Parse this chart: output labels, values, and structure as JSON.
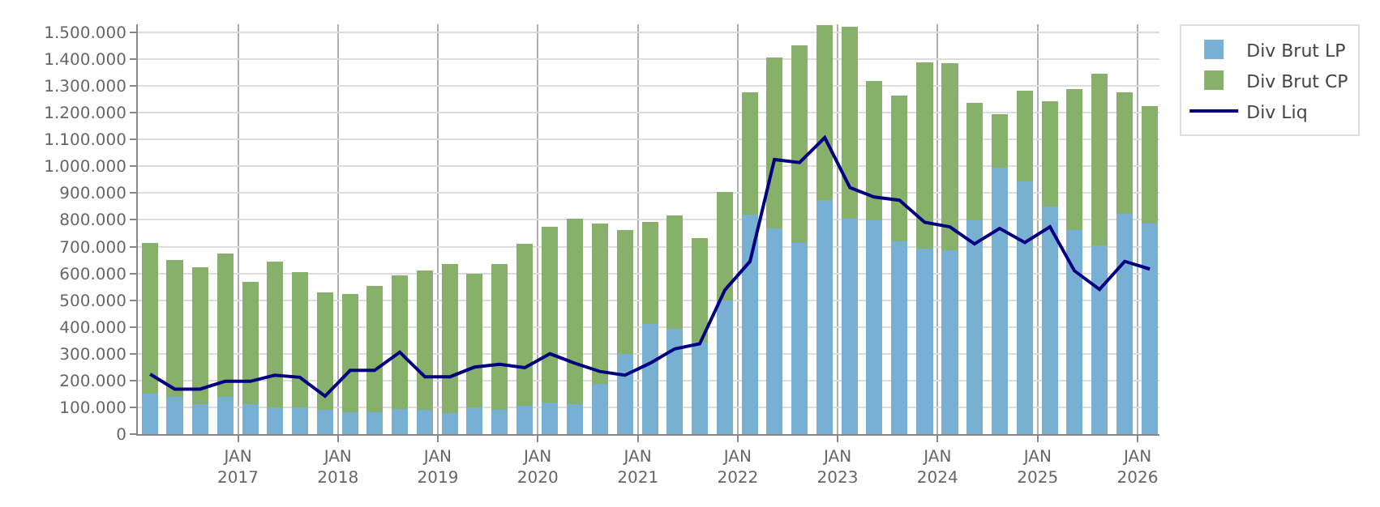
{
  "chart_data": {
    "type": "bar",
    "stacked": true,
    "x": [
      "2016-02-15",
      "2016-05-15",
      "2016-08-15",
      "2016-11-15",
      "2017-02-15",
      "2017-05-15",
      "2017-08-15",
      "2017-11-15",
      "2018-02-15",
      "2018-05-15",
      "2018-08-15",
      "2018-11-15",
      "2019-02-15",
      "2019-05-15",
      "2019-08-15",
      "2019-11-15",
      "2020-02-15",
      "2020-05-15",
      "2020-08-15",
      "2020-11-15",
      "2021-02-15",
      "2021-05-15",
      "2021-08-15",
      "2021-11-15",
      "2022-02-15",
      "2022-05-15",
      "2022-08-15",
      "2022-11-15",
      "2023-02-15",
      "2023-05-15",
      "2023-08-15",
      "2023-11-15",
      "2024-02-15",
      "2024-05-15",
      "2024-08-15",
      "2024-11-15",
      "2025-02-15",
      "2025-05-15",
      "2025-08-15",
      "2025-11-15",
      "2026-02-15"
    ],
    "series": [
      {
        "name": "Div Brut LP",
        "color": "#77b0d3",
        "values": [
          152000,
          138000,
          113000,
          138000,
          113000,
          101000,
          101000,
          90000,
          82000,
          82000,
          94000,
          90000,
          78000,
          101000,
          90000,
          107000,
          119000,
          113000,
          189000,
          300000,
          411000,
          394000,
          341000,
          499000,
          820000,
          768000,
          715000,
          873000,
          803000,
          797000,
          721000,
          692000,
          686000,
          797000,
          996000,
          943000,
          850000,
          762000,
          704000,
          821000,
          786000
        ]
      },
      {
        "name": "Div Brut CP",
        "color": "#87b06b",
        "values": [
          563000,
          513000,
          509000,
          536000,
          456000,
          544000,
          503000,
          438000,
          440000,
          470000,
          499000,
          520000,
          556000,
          497000,
          544000,
          603000,
          655000,
          690000,
          597000,
          462000,
          380000,
          421000,
          392000,
          404000,
          457000,
          637000,
          737000,
          655000,
          719000,
          521000,
          544000,
          696000,
          698000,
          439000,
          199000,
          340000,
          392000,
          526000,
          643000,
          456000,
          438000
        ]
      },
      {
        "name": "Div Liq",
        "color": "#000080",
        "type": "line",
        "marker": "none",
        "line_style": "solid",
        "values": [
          224000,
          168000,
          168000,
          197000,
          197000,
          220000,
          212000,
          142000,
          238000,
          238000,
          306000,
          214000,
          214000,
          250000,
          261000,
          248000,
          300000,
          265000,
          234000,
          220000,
          265000,
          318000,
          337000,
          538000,
          645000,
          1025000,
          1014000,
          1107000,
          920000,
          885000,
          873000,
          791000,
          774000,
          710000,
          768000,
          715000,
          774000,
          610000,
          540000,
          645000,
          616000
        ]
      }
    ],
    "xlim": [
      "2016-01-01",
      "2026-03-22"
    ],
    "xticks": [
      {
        "value": "2017-01-01",
        "label": "JAN\n2017"
      },
      {
        "value": "2018-01-01",
        "label": "JAN\n2018"
      },
      {
        "value": "2019-01-01",
        "label": "JAN\n2019"
      },
      {
        "value": "2020-01-01",
        "label": "JAN\n2020"
      },
      {
        "value": "2021-01-01",
        "label": "JAN\n2021"
      },
      {
        "value": "2022-01-01",
        "label": "JAN\n2022"
      },
      {
        "value": "2023-01-01",
        "label": "JAN\n2023"
      },
      {
        "value": "2024-01-01",
        "label": "JAN\n2024"
      },
      {
        "value": "2025-01-01",
        "label": "JAN\n2025"
      },
      {
        "value": "2026-01-01",
        "label": "JAN\n2026"
      }
    ],
    "ylim": [
      0,
      1530000
    ],
    "yticks": [
      0,
      {
        "value": 100000,
        "label": "100.000"
      },
      {
        "value": 200000,
        "label": "200.000"
      },
      {
        "value": 300000,
        "label": "300.000"
      },
      {
        "value": 400000,
        "label": "400.000"
      },
      {
        "value": 500000,
        "label": "500.000"
      },
      {
        "value": 600000,
        "label": "600.000"
      },
      {
        "value": 700000,
        "label": "700.000"
      },
      {
        "value": 800000,
        "label": "800.000"
      },
      {
        "value": 900000,
        "label": "900.000"
      },
      {
        "value": 1000000,
        "label": "1.000.000"
      },
      {
        "value": 1100000,
        "label": "1.100.000"
      },
      {
        "value": 1200000,
        "label": "1.200.000"
      },
      {
        "value": 1300000,
        "label": "1.300.000"
      },
      {
        "value": 1400000,
        "label": "1.400.000"
      },
      {
        "value": 1500000,
        "label": "1.500.000"
      }
    ],
    "grid": true,
    "legend": "top right"
  }
}
